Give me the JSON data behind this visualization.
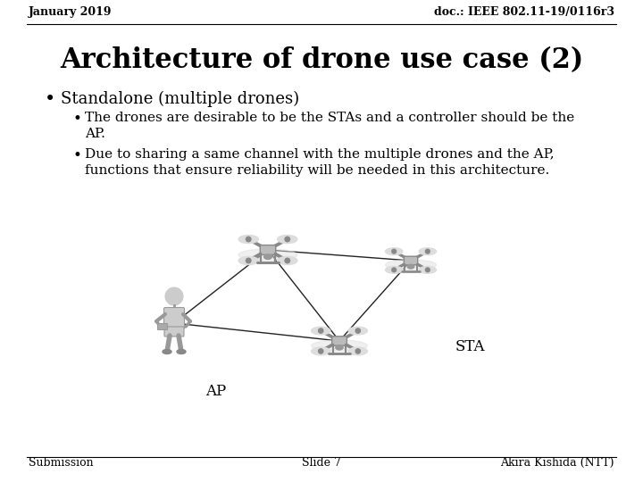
{
  "bg_color": "#ffffff",
  "header_left": "January 2019",
  "header_right": "doc.: IEEE 802.11-19/0116r3",
  "title": "Architecture of drone use case (2)",
  "bullet1": "Standalone (multiple drones)",
  "sub_bullet1": "The drones are desirable to be the STAs and a controller should be the\nAP.",
  "sub_bullet2": "Due to sharing a same channel with the multiple drones and the AP,\nfunctions that ensure reliability will be needed in this architecture.",
  "footer_left": "Submission",
  "footer_center": "Slide 7",
  "footer_right": "Akira Kishida (NTT)",
  "header_fontsize": 9,
  "title_fontsize": 22,
  "bullet1_fontsize": 13,
  "sub_bullet_fontsize": 11,
  "footer_fontsize": 9,
  "text_color": "#000000",
  "line_color": "#000000",
  "drone_color": "#aaaaaa",
  "person_color": "#cccccc",
  "diagram_line_color": "#222222",
  "ap_label": "AP",
  "sta_label": "STA",
  "diagram_label_fontsize": 12
}
